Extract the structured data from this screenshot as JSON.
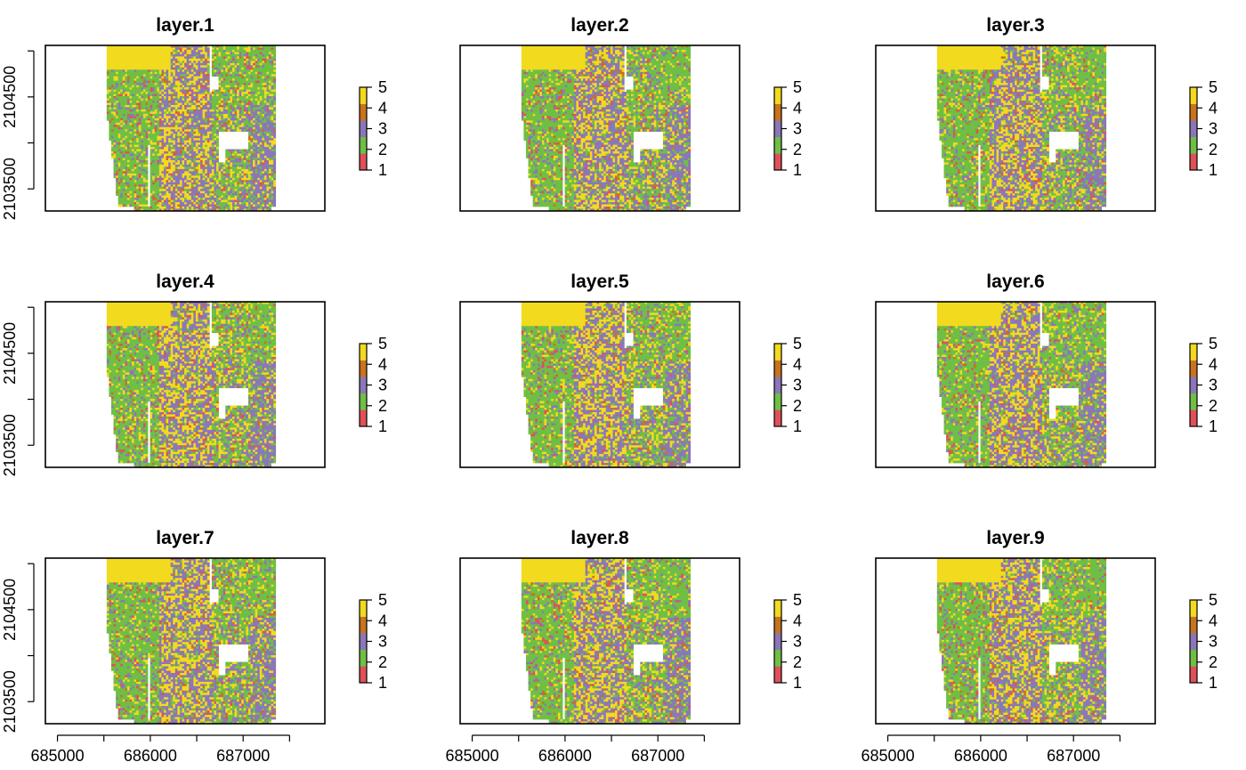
{
  "chart_data": {
    "type": "heatmap",
    "panels": [
      {
        "title": "layer.1",
        "seed": 11
      },
      {
        "title": "layer.2",
        "seed": 23
      },
      {
        "title": "layer.3",
        "seed": 37
      },
      {
        "title": "layer.4",
        "seed": 41
      },
      {
        "title": "layer.5",
        "seed": 53
      },
      {
        "title": "layer.6",
        "seed": 67
      },
      {
        "title": "layer.7",
        "seed": 71
      },
      {
        "title": "layer.8",
        "seed": 83
      },
      {
        "title": "layer.9",
        "seed": 97
      }
    ],
    "x_ticks": [
      685000,
      685500,
      686000,
      686500,
      687000,
      687500
    ],
    "x_tick_labels": [
      "685000",
      "",
      "686000",
      "",
      "687000",
      ""
    ],
    "y_ticks": [
      2103500,
      2104000,
      2104500,
      2105000
    ],
    "y_tick_labels": [
      "2103500",
      "",
      "2104500",
      ""
    ],
    "xlim": [
      684870,
      687880
    ],
    "ylim": [
      2103260,
      2105060
    ],
    "raster_extent": {
      "xmin": 685530,
      "xmax": 687350,
      "ymin": 2103260,
      "ymax": 2105060
    },
    "legend": {
      "classes": [
        1,
        2,
        3,
        4,
        5
      ],
      "labels": [
        "1",
        "2",
        "3",
        "4",
        "5"
      ],
      "colors": [
        "#e0505a",
        "#6fbf45",
        "#8b77b8",
        "#c8731e",
        "#f2da1f"
      ]
    },
    "grid": false
  }
}
